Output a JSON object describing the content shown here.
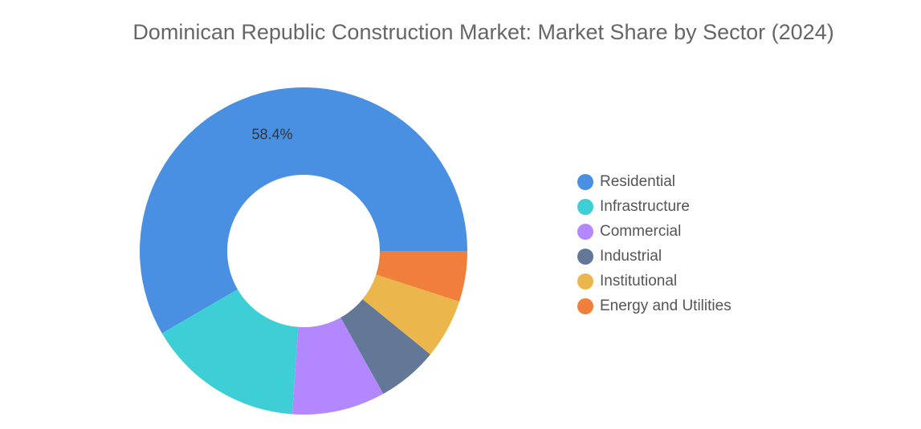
{
  "chart_data": {
    "type": "donut",
    "title": "Dominican Republic Construction Market: Market Share by Sector (2024)",
    "categories": [
      "Residential",
      "Infrastructure",
      "Commercial",
      "Industrial",
      "Institutional",
      "Energy and Utilities"
    ],
    "values": [
      58.4,
      15.5,
      9.2,
      6.0,
      5.9,
      5.0
    ],
    "value_labels": [
      "58.4%",
      null,
      null,
      null,
      null,
      null
    ],
    "colors": [
      "#4a90e2",
      "#3ecfd6",
      "#b388ff",
      "#637896",
      "#ebb74d",
      "#f07f3c"
    ],
    "legend": "right"
  }
}
